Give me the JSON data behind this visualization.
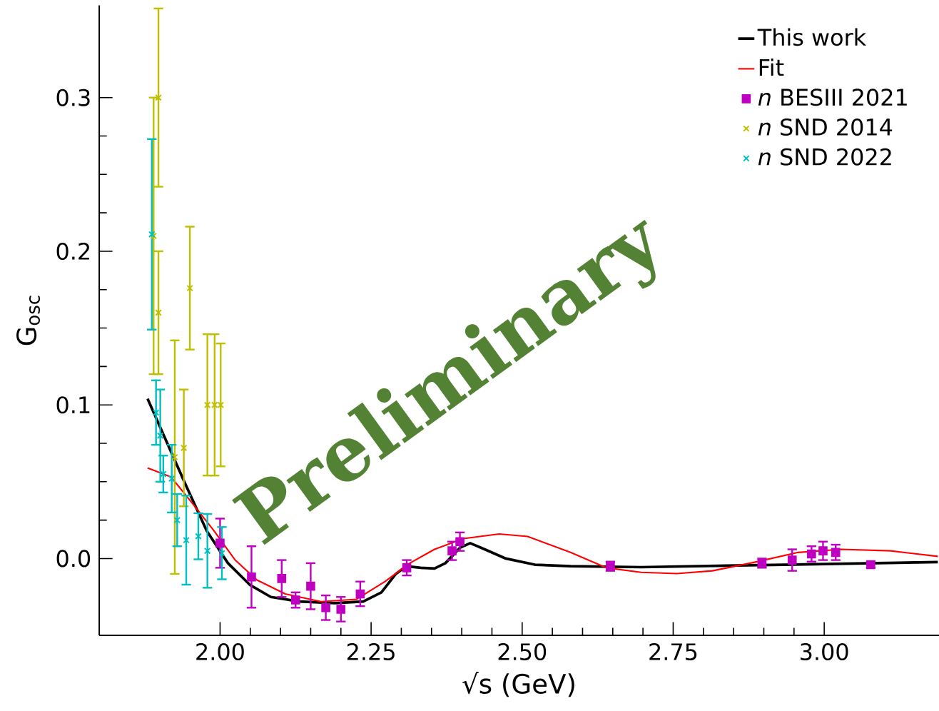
{
  "chart_data": {
    "type": "line",
    "xlabel": "√s (GeV)",
    "ylabel": "G$_{osc}$",
    "xlim": [
      1.8,
      3.19
    ],
    "ylim": [
      -0.05,
      0.36
    ],
    "xticks": [
      {
        "value": 2.0,
        "label": "2.00"
      },
      {
        "value": 2.25,
        "label": "2.25"
      },
      {
        "value": 2.5,
        "label": "2.50"
      },
      {
        "value": 2.75,
        "label": "2.75"
      },
      {
        "value": 3.0,
        "label": "3.00"
      }
    ],
    "yticks": [
      {
        "value": 0.0,
        "label": "0.0"
      },
      {
        "value": 0.1,
        "label": "0.1"
      },
      {
        "value": 0.2,
        "label": "0.2"
      },
      {
        "value": 0.3,
        "label": "0.3"
      }
    ],
    "legend": "top right",
    "annotations": [
      "Preliminary"
    ],
    "series": [
      {
        "name": "This work",
        "color": "#000000",
        "x": [
          1.88,
          1.907,
          1.943,
          1.978,
          2.013,
          2.049,
          2.084,
          2.131,
          2.19,
          2.237,
          2.267,
          2.291,
          2.308,
          2.332,
          2.355,
          2.373,
          2.397,
          2.414,
          2.438,
          2.473,
          2.521,
          2.58,
          2.697,
          2.933,
          3.188
        ],
        "values": [
          0.104,
          0.08,
          0.048,
          0.018,
          -0.003,
          -0.017,
          -0.025,
          -0.028,
          -0.029,
          -0.028,
          -0.022,
          -0.01,
          -0.005,
          -0.006,
          -0.0065,
          -0.003,
          0.007,
          0.01,
          0.006,
          0.0,
          -0.004,
          -0.005,
          -0.0056,
          -0.004,
          -0.0023
        ]
      },
      {
        "name": "Fit",
        "color": "#ff0000",
        "x": [
          1.88,
          1.919,
          1.954,
          1.99,
          2.025,
          2.061,
          2.108,
          2.167,
          2.226,
          2.273,
          2.314,
          2.355,
          2.403,
          2.462,
          2.509,
          2.58,
          2.639,
          2.697,
          2.756,
          2.815,
          2.886,
          2.957,
          3.028,
          3.11,
          3.188
        ],
        "values": [
          0.059,
          0.053,
          0.036,
          0.018,
          -0.001,
          -0.014,
          -0.023,
          -0.028,
          -0.0265,
          -0.015,
          -0.003,
          0.006,
          0.013,
          0.016,
          0.0144,
          0.004,
          -0.006,
          -0.009,
          -0.0098,
          -0.008,
          -0.0023,
          0.004,
          0.006,
          0.005,
          0.0014
        ]
      },
      {
        "name": "*n* BESIII 2021",
        "type": "scatter",
        "marker": "square",
        "color": "#c000c0",
        "x": [
          2.0,
          2.052,
          2.102,
          2.125,
          2.15,
          2.175,
          2.2,
          2.232,
          2.309,
          2.384,
          2.397,
          2.646,
          2.897,
          2.947,
          2.979,
          2.998,
          3.019,
          3.077
        ],
        "values": [
          0.01,
          -0.012,
          -0.013,
          -0.027,
          -0.018,
          -0.032,
          -0.033,
          -0.023,
          -0.006,
          0.005,
          0.011,
          -0.005,
          -0.003,
          -0.001,
          0.003,
          0.005,
          0.004,
          -0.004
        ],
        "errors": [
          0.016,
          0.02,
          0.012,
          0.005,
          0.015,
          0.008,
          0.008,
          0.008,
          0.005,
          0.006,
          0.006,
          0.003,
          0.003,
          0.007,
          0.005,
          0.006,
          0.005,
          0.002
        ]
      },
      {
        "name": "*n* SND 2014",
        "type": "scatter",
        "marker": "cross",
        "color": "#bfbf00",
        "x": [
          1.89,
          1.898,
          1.898,
          1.925,
          1.94,
          1.95,
          1.979,
          1.991,
          2.001
        ],
        "values": [
          0.21,
          0.3,
          0.16,
          0.066,
          0.072,
          0.176,
          0.1,
          0.1,
          0.1
        ],
        "errors": [
          0.09,
          0.058,
          0.04,
          0.076,
          0.038,
          0.04,
          0.046,
          0.046,
          0.04
        ]
      },
      {
        "name": "*n* SND 2022",
        "type": "scatter",
        "marker": "cross",
        "color": "#00bfbf",
        "x": [
          1.887,
          1.894,
          1.901,
          1.906,
          1.92,
          1.929,
          1.944,
          1.964,
          1.979,
          2.003
        ],
        "values": [
          0.211,
          0.095,
          0.08,
          0.055,
          0.052,
          0.025,
          0.012,
          0.0145,
          0.005,
          0.0035
        ],
        "errors": [
          0.062,
          0.021,
          0.03,
          0.012,
          0.022,
          0.017,
          0.029,
          0.015,
          0.024,
          0.017
        ]
      }
    ]
  }
}
